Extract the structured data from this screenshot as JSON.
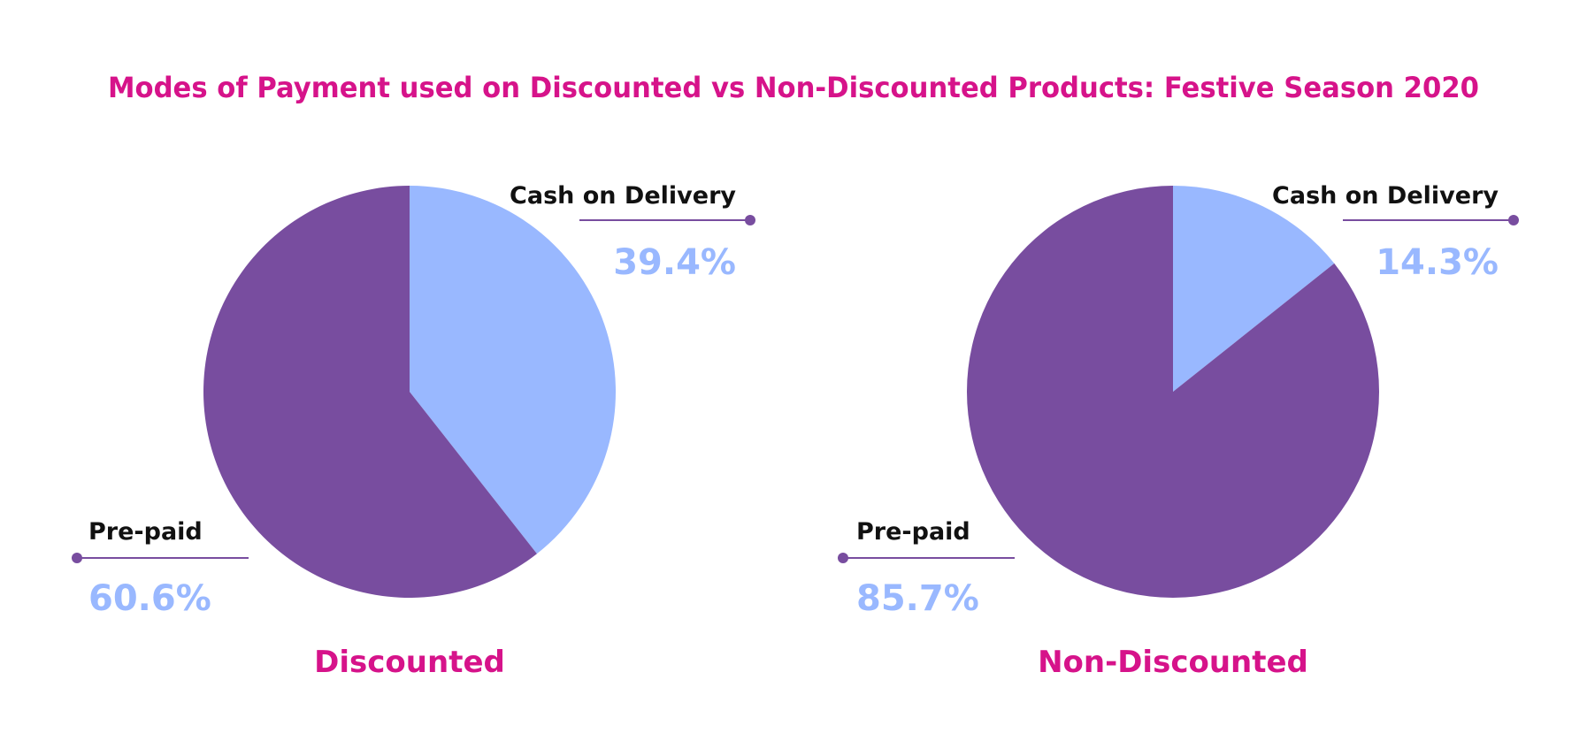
{
  "title": "Modes of Payment used on Discounted vs Non-Discounted Products: Festive Season 2020",
  "colors": {
    "title": "#D6138A",
    "cash_on_delivery": "#99B8FF",
    "pre_paid": "#784D9F",
    "label": "#111111",
    "value": "#99B8FF"
  },
  "chart_data": [
    {
      "type": "pie",
      "title": "Discounted",
      "slices": [
        {
          "label": "Cash on Delivery",
          "value": 39.4,
          "value_label": "39.4%",
          "color": "#99B8FF"
        },
        {
          "label": "Pre-paid",
          "value": 60.6,
          "value_label": "60.6%",
          "color": "#784D9F"
        }
      ]
    },
    {
      "type": "pie",
      "title": "Non-Discounted",
      "slices": [
        {
          "label": "Cash on Delivery",
          "value": 14.3,
          "value_label": "14.3%",
          "color": "#99B8FF"
        },
        {
          "label": "Pre-paid",
          "value": 85.7,
          "value_label": "85.7%",
          "color": "#784D9F"
        }
      ]
    }
  ]
}
